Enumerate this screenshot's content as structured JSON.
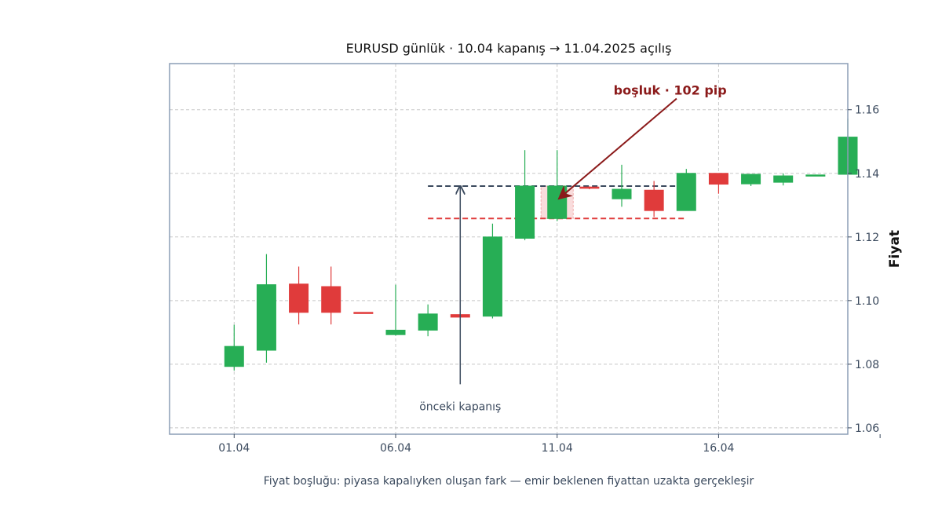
{
  "chart_data": {
    "type": "candlestick",
    "title": "EURUSD günlük · 10.04 kapanış → 11.04.2025 açılış",
    "ylabel": "Fiyat",
    "caption": "Fiyat boşluğu: piyasa kapalıyken oluşan fark — emir beklenen fiyattan uzakta gerçekleşir",
    "xlim": [
      -1.0,
      20.0
    ],
    "ylim": [
      1.058,
      1.1745
    ],
    "x_ticks": [
      {
        "x": 1,
        "label": "01.04"
      },
      {
        "x": 6,
        "label": "06.04"
      },
      {
        "x": 11,
        "label": "11.04"
      },
      {
        "x": 16,
        "label": "16.04"
      },
      {
        "x": 21,
        "label": ""
      }
    ],
    "y_ticks": [
      {
        "value": 1.06,
        "label": "1.06"
      },
      {
        "value": 1.08,
        "label": "1.08"
      },
      {
        "value": 1.1,
        "label": "1.10"
      },
      {
        "value": 1.12,
        "label": "1.12"
      },
      {
        "value": 1.14,
        "label": "1.14"
      },
      {
        "value": 1.16,
        "label": "1.16"
      }
    ],
    "grid": true,
    "colors": {
      "up": "#27ae55",
      "down": "#e03b3b",
      "frame": "#8c9db5",
      "grid": "#c8c8c8",
      "gap_arrow": "#8b1a1a",
      "prev_line": "#3b4a5e",
      "gap_line": "#e03b3b"
    },
    "candles": [
      {
        "x": 1,
        "open": 1.0793,
        "high": 1.0924,
        "low": 1.078,
        "close": 1.0856
      },
      {
        "x": 2,
        "open": 1.0844,
        "high": 1.1146,
        "low": 1.0805,
        "close": 1.105
      },
      {
        "x": 3,
        "open": 1.1052,
        "high": 1.1107,
        "low": 1.0925,
        "close": 1.0963
      },
      {
        "x": 4,
        "open": 1.1044,
        "high": 1.1107,
        "low": 1.0925,
        "close": 1.0963
      },
      {
        "x": 5,
        "open": 1.0963,
        "high": 1.0963,
        "low": 1.0961,
        "close": 1.0962
      },
      {
        "x": 6,
        "open": 1.0893,
        "high": 1.105,
        "low": 1.089,
        "close": 1.0907
      },
      {
        "x": 7,
        "open": 1.0907,
        "high": 1.0988,
        "low": 1.0888,
        "close": 1.0958
      },
      {
        "x": 8,
        "open": 1.0956,
        "high": 1.1093,
        "low": 1.0947,
        "close": 1.0948
      },
      {
        "x": 9,
        "open": 1.0951,
        "high": 1.1242,
        "low": 1.0944,
        "close": 1.12
      },
      {
        "x": 10,
        "open": 1.1196,
        "high": 1.1473,
        "low": 1.119,
        "close": 1.136
      },
      {
        "x": 11,
        "open": 1.1258,
        "high": 1.1473,
        "low": 1.125,
        "close": 1.136
      },
      {
        "x": 12,
        "open": 1.1357,
        "high": 1.1359,
        "low": 1.135,
        "close": 1.1353
      },
      {
        "x": 13,
        "open": 1.132,
        "high": 1.1427,
        "low": 1.1295,
        "close": 1.135
      },
      {
        "x": 14,
        "open": 1.1347,
        "high": 1.1376,
        "low": 1.1263,
        "close": 1.1283
      },
      {
        "x": 15,
        "open": 1.1283,
        "high": 1.1414,
        "low": 1.1283,
        "close": 1.14
      },
      {
        "x": 16,
        "open": 1.14,
        "high": 1.14,
        "low": 1.1336,
        "close": 1.1366
      },
      {
        "x": 17,
        "open": 1.1367,
        "high": 1.1397,
        "low": 1.136,
        "close": 1.1397
      },
      {
        "x": 18,
        "open": 1.1372,
        "high": 1.14,
        "low": 1.1362,
        "close": 1.1392
      },
      {
        "x": 19,
        "open": 1.1393,
        "high": 1.1396,
        "low": 1.1393,
        "close": 1.1395
      },
      {
        "x": 20,
        "open": 1.1397,
        "high": 1.1572,
        "low": 1.1397,
        "close": 1.1514
      }
    ],
    "reference_lines": [
      {
        "name": "prev-close-line",
        "value": 1.136,
        "x_from": 7,
        "x_to": 15,
        "color": "#3b4a5e"
      },
      {
        "name": "gap-open-line",
        "value": 1.1258,
        "x_from": 7,
        "x_to": 15,
        "color": "#e03b3b"
      }
    ],
    "gap_zone": {
      "x_from": 10.5,
      "x_to": 11.5,
      "low": 1.1258,
      "high": 1.136
    },
    "annotations": {
      "gap_label": "boşluk · 102 pip",
      "gap_label_pos": {
        "x": 14.5,
        "y": 1.1662
      },
      "gap_arrow_to": {
        "x": 11.05,
        "y": 1.132
      },
      "gap_arrow_from": {
        "x": 14.7,
        "y": 1.1635
      },
      "prev_close_label": "önceki kapanış",
      "prev_close_label_pos": {
        "x": 8.0,
        "y": 1.0668
      },
      "prev_arrow_from": {
        "x": 8.0,
        "y": 1.0737
      },
      "prev_arrow_to": {
        "x": 8.0,
        "y": 1.136
      }
    }
  }
}
